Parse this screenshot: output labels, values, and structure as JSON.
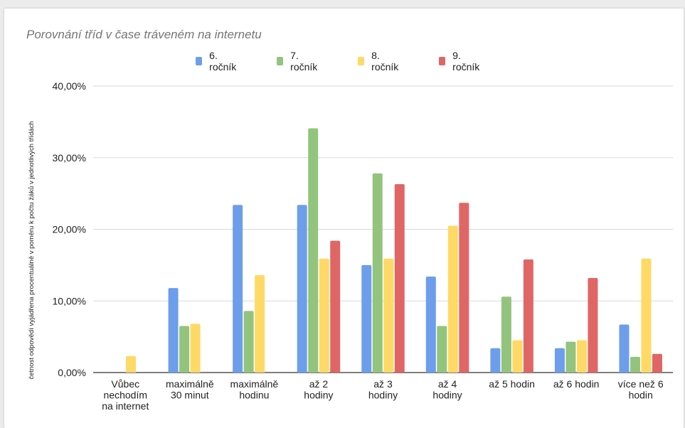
{
  "chart_data": {
    "type": "bar",
    "title": "Porovnání tříd v čase tráveném na internetu",
    "ylabel": "četnost odpovědí vyjádřena procentuálně v poměru k počtu žáků v jednotlivých třídách",
    "xlabel": "",
    "ylim": [
      0,
      40
    ],
    "yticks": [
      "0,00%",
      "10,00%",
      "20,00%",
      "30,00%",
      "40,00%"
    ],
    "grid": true,
    "legend_position": "top",
    "categories": [
      [
        "Vůbec",
        "nechodím",
        "na internet"
      ],
      [
        "maximálně",
        "30 minut"
      ],
      [
        "maximálně",
        "hodinu"
      ],
      [
        "až 2",
        "hodiny"
      ],
      [
        "až 3",
        "hodiny"
      ],
      [
        "až 4",
        "hodiny"
      ],
      [
        "až 5 hodin"
      ],
      [
        "až 6 hodin"
      ],
      [
        "více než 6",
        "hodin"
      ]
    ],
    "series": [
      {
        "name": "6. ročník",
        "color": "#6d9eeb",
        "values": [
          0,
          11.8,
          23.4,
          23.4,
          15.0,
          13.4,
          3.4,
          3.4,
          6.7
        ]
      },
      {
        "name": "7. ročník",
        "color": "#93c47d",
        "values": [
          0,
          6.5,
          8.6,
          34.1,
          27.8,
          6.5,
          10.6,
          4.3,
          2.2
        ]
      },
      {
        "name": "8. ročník",
        "color": "#ffd966",
        "values": [
          2.3,
          6.8,
          13.6,
          15.9,
          15.9,
          20.5,
          4.5,
          4.5,
          15.9
        ]
      },
      {
        "name": "9. ročník",
        "color": "#e06666",
        "values": [
          0,
          0,
          0,
          18.4,
          26.3,
          23.7,
          15.8,
          13.2,
          2.6
        ]
      }
    ]
  }
}
